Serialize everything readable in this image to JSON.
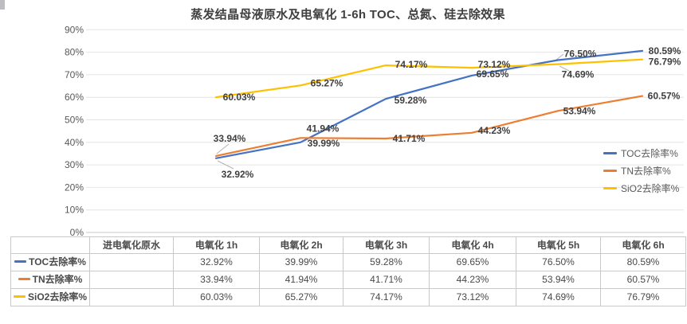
{
  "chart_data": {
    "type": "line",
    "title": "蒸发结晶母液原水及电氧化 1-6h TOC、总氮、硅去除效果",
    "categories": [
      "进电氧化原水",
      "电氧化 1h",
      "电氧化 2h",
      "电氧化 3h",
      "电氧化 4h",
      "电氧化 5h",
      "电氧化 6h"
    ],
    "series": [
      {
        "name": "TOC去除率%",
        "color": "#4472C4",
        "values": [
          null,
          32.92,
          39.99,
          59.28,
          69.65,
          76.5,
          80.59
        ],
        "labels": [
          "",
          "32.92%",
          "39.99%",
          "59.28%",
          "69.65%",
          "76.50%",
          "80.59%"
        ]
      },
      {
        "name": "TN去除率%",
        "color": "#ED7D31",
        "values": [
          null,
          33.94,
          41.94,
          41.71,
          44.23,
          53.94,
          60.57
        ],
        "labels": [
          "",
          "33.94%",
          "41.94%",
          "41.71%",
          "44.23%",
          "53.94%",
          "60.57%"
        ]
      },
      {
        "name": "SiO2去除率%",
        "color": "#FFC000",
        "values": [
          null,
          60.03,
          65.27,
          74.17,
          73.12,
          74.69,
          76.79
        ],
        "labels": [
          "",
          "60.03%",
          "65.27%",
          "74.17%",
          "73.12%",
          "74.69%",
          "76.79%"
        ]
      }
    ],
    "y_axis": {
      "min": 0,
      "max": 90,
      "step": 10,
      "tick_labels": [
        "0%",
        "10%",
        "20%",
        "30%",
        "40%",
        "50%",
        "60%",
        "70%",
        "80%",
        "90%"
      ]
    },
    "legend_position": "right",
    "grid": true,
    "data_table_shown": true
  }
}
